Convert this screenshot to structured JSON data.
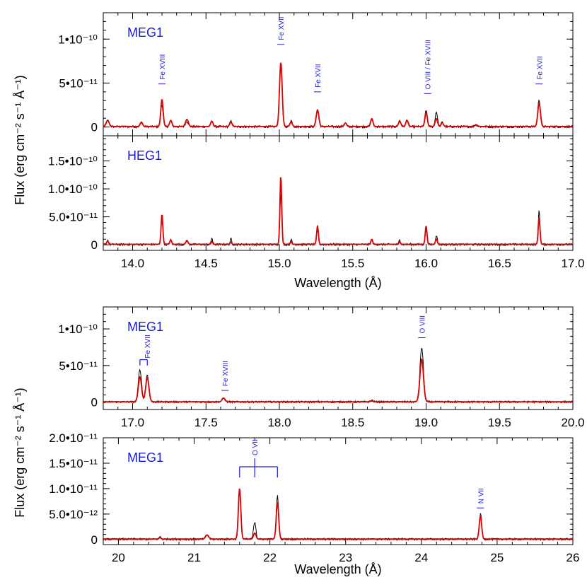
{
  "chart_data": [
    {
      "type": "line",
      "panel_label": "MEG1",
      "x_range": [
        13.8,
        17.0
      ],
      "y_range": [
        -1e-11,
        1.3e-10
      ],
      "x_ticks": [],
      "y_ticks": [
        {
          "value": 0,
          "label": "0"
        },
        {
          "value": 5e-11,
          "label": "5•10⁻¹¹"
        },
        {
          "value": 1e-10,
          "label": "1•10⁻¹⁰"
        }
      ],
      "peaks": [
        {
          "x": 13.83,
          "obs": 7e-12,
          "model": 7e-12,
          "w": 0.01
        },
        {
          "x": 14.06,
          "obs": 5e-12,
          "model": 5e-12,
          "w": 0.008
        },
        {
          "x": 14.2,
          "obs": 2.5e-11,
          "model": 3.1e-11,
          "w": 0.008
        },
        {
          "x": 14.26,
          "obs": 7e-12,
          "model": 7e-12,
          "w": 0.008
        },
        {
          "x": 14.37,
          "obs": 6e-12,
          "model": 8e-12,
          "w": 0.01
        },
        {
          "x": 14.54,
          "obs": 6e-12,
          "model": 6e-12,
          "w": 0.008
        },
        {
          "x": 14.67,
          "obs": 6e-12,
          "model": 5e-12,
          "w": 0.008
        },
        {
          "x": 15.01,
          "obs": 7e-11,
          "model": 7.3e-11,
          "w": 0.009
        },
        {
          "x": 15.08,
          "obs": 7e-12,
          "model": 5e-12,
          "w": 0.008
        },
        {
          "x": 15.26,
          "obs": 1.8e-11,
          "model": 1.9e-11,
          "w": 0.009
        },
        {
          "x": 15.45,
          "obs": 4e-12,
          "model": 4e-12,
          "w": 0.008
        },
        {
          "x": 15.63,
          "obs": 8e-12,
          "model": 9e-12,
          "w": 0.008
        },
        {
          "x": 15.82,
          "obs": 7e-12,
          "model": 6e-12,
          "w": 0.008
        },
        {
          "x": 15.87,
          "obs": 8e-12,
          "model": 7e-12,
          "w": 0.008
        },
        {
          "x": 16.0,
          "obs": 1.9e-11,
          "model": 1.6e-11,
          "w": 0.008
        },
        {
          "x": 16.07,
          "obs": 1.7e-11,
          "model": 9e-12,
          "w": 0.008
        },
        {
          "x": 16.11,
          "obs": 5e-12,
          "model": 4e-12,
          "w": 0.008
        },
        {
          "x": 16.34,
          "obs": 2e-12,
          "model": 2e-12,
          "w": 0.01
        },
        {
          "x": 16.77,
          "obs": 3.1e-11,
          "model": 2.7e-11,
          "w": 0.009
        }
      ],
      "annotations": [
        {
          "x": 14.2,
          "y_base": 4.9e-11,
          "text": "Fe XVIII"
        },
        {
          "x": 15.01,
          "y_base": 9.4e-11,
          "text": "Fe XVII"
        },
        {
          "x": 15.26,
          "y_base": 4e-11,
          "text": "Fe XVII"
        },
        {
          "x": 16.01,
          "y_base": 3.8e-11,
          "text": "O VIII / Fe XVIII"
        },
        {
          "x": 16.77,
          "y_base": 4.9e-11,
          "text": "Fe XVII"
        }
      ],
      "bracket": null,
      "line_colors": {
        "observed": "#000000",
        "model": "#e00000"
      }
    },
    {
      "type": "line",
      "panel_label": "HEG1",
      "x_range": [
        13.8,
        17.0
      ],
      "y_range": [
        -1e-11,
        1.95e-10
      ],
      "x_ticks": [
        {
          "value": 14.0,
          "label": "14.0"
        },
        {
          "value": 14.5,
          "label": "14.5"
        },
        {
          "value": 15.0,
          "label": "15.0"
        },
        {
          "value": 15.5,
          "label": "15.5"
        },
        {
          "value": 16.0,
          "label": "16.0"
        },
        {
          "value": 16.5,
          "label": "16.5"
        },
        {
          "value": 17.0,
          "label": "17.0"
        }
      ],
      "y_ticks": [
        {
          "value": 0,
          "label": "0"
        },
        {
          "value": 5e-11,
          "label": "5.0•10⁻¹¹"
        },
        {
          "value": 1e-10,
          "label": "1.0•10⁻¹⁰"
        },
        {
          "value": 1.5e-10,
          "label": "1.5•10⁻¹⁰"
        }
      ],
      "peaks": [
        {
          "x": 13.83,
          "obs": 8e-12,
          "model": 6e-12,
          "w": 0.006
        },
        {
          "x": 14.2,
          "obs": 4.7e-11,
          "model": 5.4e-11,
          "w": 0.006
        },
        {
          "x": 14.26,
          "obs": 8e-12,
          "model": 8e-12,
          "w": 0.006
        },
        {
          "x": 14.37,
          "obs": 7e-12,
          "model": 7e-12,
          "w": 0.007
        },
        {
          "x": 14.54,
          "obs": 1.2e-11,
          "model": 5e-12,
          "w": 0.005
        },
        {
          "x": 14.67,
          "obs": 1e-11,
          "model": 4e-12,
          "w": 0.005
        },
        {
          "x": 15.01,
          "obs": 9.3e-11,
          "model": 1.22e-10,
          "w": 0.006
        },
        {
          "x": 15.08,
          "obs": 1e-11,
          "model": 5e-12,
          "w": 0.005
        },
        {
          "x": 15.26,
          "obs": 2.8e-11,
          "model": 3.3e-11,
          "w": 0.006
        },
        {
          "x": 15.63,
          "obs": 8e-12,
          "model": 9e-12,
          "w": 0.006
        },
        {
          "x": 15.82,
          "obs": 9e-12,
          "model": 5e-12,
          "w": 0.005
        },
        {
          "x": 16.0,
          "obs": 2.8e-11,
          "model": 3.3e-11,
          "w": 0.006
        },
        {
          "x": 16.07,
          "obs": 1.7e-11,
          "model": 1e-11,
          "w": 0.006
        },
        {
          "x": 16.77,
          "obs": 6e-11,
          "model": 4.8e-11,
          "w": 0.006
        }
      ],
      "annotations": [],
      "bracket": null,
      "line_colors": {
        "observed": "#000000",
        "model": "#e00000"
      }
    },
    {
      "type": "line",
      "panel_label": "MEG1",
      "x_range": [
        16.8,
        20.0
      ],
      "y_range": [
        -1e-11,
        1.3e-10
      ],
      "x_ticks": [
        {
          "value": 17.0,
          "label": "17.0"
        },
        {
          "value": 17.5,
          "label": "17.5"
        },
        {
          "value": 18.0,
          "label": "18.0"
        },
        {
          "value": 18.5,
          "label": "18.5"
        },
        {
          "value": 19.0,
          "label": "19.0"
        },
        {
          "value": 19.5,
          "label": "19.5"
        },
        {
          "value": 20.0,
          "label": "20.0"
        }
      ],
      "y_ticks": [
        {
          "value": 0,
          "label": "0"
        },
        {
          "value": 5e-11,
          "label": "5•10⁻¹¹"
        },
        {
          "value": 1e-10,
          "label": "1•10⁻¹⁰"
        }
      ],
      "peaks": [
        {
          "x": 17.05,
          "obs": 4.4e-11,
          "model": 3.4e-11,
          "w": 0.011
        },
        {
          "x": 17.1,
          "obs": 3.7e-11,
          "model": 3.3e-11,
          "w": 0.011
        },
        {
          "x": 17.62,
          "obs": 5e-12,
          "model": 5e-12,
          "w": 0.01
        },
        {
          "x": 18.63,
          "obs": 2e-12,
          "model": 1e-12,
          "w": 0.01
        },
        {
          "x": 18.97,
          "obs": 7.4e-11,
          "model": 5.8e-11,
          "w": 0.012
        }
      ],
      "annotations": [
        {
          "x": 17.63,
          "y_base": 1.6e-11,
          "text": "Fe XVIII"
        },
        {
          "x": 18.97,
          "y_base": 8.8e-11,
          "text": "O VIII"
        }
      ],
      "bracket": {
        "xs": [
          17.05,
          17.1
        ],
        "y_low": 5e-11,
        "y_high": 5.8e-11,
        "text": "Fe XVII"
      },
      "line_colors": {
        "observed": "#000000",
        "model": "#e00000"
      }
    },
    {
      "type": "line",
      "panel_label": "MEG1",
      "x_range": [
        19.8,
        26.0
      ],
      "y_range": [
        -1e-12,
        2e-11
      ],
      "x_ticks": [
        {
          "value": 20,
          "label": "20"
        },
        {
          "value": 21,
          "label": "21"
        },
        {
          "value": 22,
          "label": "22"
        },
        {
          "value": 23,
          "label": "23"
        },
        {
          "value": 24,
          "label": "24"
        },
        {
          "value": 25,
          "label": "25"
        },
        {
          "value": 26,
          "label": "26"
        }
      ],
      "y_ticks": [
        {
          "value": 0,
          "label": "0"
        },
        {
          "value": 5e-12,
          "label": "5.0•10⁻¹²"
        },
        {
          "value": 1e-11,
          "label": "1.0•10⁻¹¹"
        },
        {
          "value": 1.5e-11,
          "label": "1.5•10⁻¹¹"
        },
        {
          "value": 2e-11,
          "label": "2.0•10⁻¹¹"
        }
      ],
      "peaks": [
        {
          "x": 20.55,
          "obs": 5e-13,
          "model": 3e-13,
          "w": 0.012
        },
        {
          "x": 21.17,
          "obs": 9e-13,
          "model": 8e-13,
          "w": 0.02
        },
        {
          "x": 21.6,
          "obs": 9.3e-12,
          "model": 1e-11,
          "w": 0.016
        },
        {
          "x": 21.8,
          "obs": 3.4e-12,
          "model": 1.2e-12,
          "w": 0.016
        },
        {
          "x": 22.1,
          "obs": 8.5e-12,
          "model": 7.3e-12,
          "w": 0.016
        },
        {
          "x": 24.78,
          "obs": 5e-12,
          "model": 4.5e-12,
          "w": 0.016
        }
      ],
      "annotations": [
        {
          "x": 24.78,
          "y_base": 6.2e-12,
          "text": "N VII"
        }
      ],
      "bracket": {
        "xs": [
          21.6,
          21.8,
          22.1
        ],
        "y_low": 1.22e-11,
        "y_high": 1.43e-11,
        "text": "O VII"
      },
      "line_colors": {
        "observed": "#000000",
        "model": "#e00000"
      }
    }
  ],
  "axes": {
    "xlabel_top": "Wavelength (Å)",
    "xlabel_bottom": "Wavelength (Å)",
    "ylabel_top": "Flux (erg cm⁻² s⁻¹ Å⁻¹)",
    "ylabel_bottom": "Flux (erg cm⁻² s⁻¹ Å⁻¹)"
  }
}
